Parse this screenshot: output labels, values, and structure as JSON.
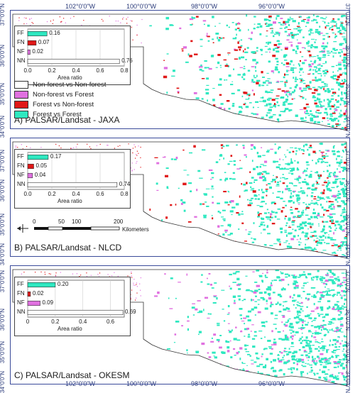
{
  "colors": {
    "FF": "#2ee8c0",
    "FN": "#e01818",
    "NF": "#e070e0",
    "NN": "#ffffff",
    "frame": "#3a4a9a"
  },
  "graticule": {
    "lon_labels": [
      "102°0'0\"W",
      "100°0'0\"W",
      "98°0'0\"W",
      "96°0'0\"W"
    ],
    "lat_labels": [
      "37°0'0\"N",
      "36°0'0\"N",
      "35°0'0\"N",
      "34°0'0\"N"
    ]
  },
  "legend": [
    {
      "label": "Non-forest vs Non-forest",
      "color": "#ffffff"
    },
    {
      "label": "Non-forest vs Forest",
      "color": "#e070e0"
    },
    {
      "label": "Forest vs Non-forest",
      "color": "#e01818"
    },
    {
      "label": "Forest vs Forest",
      "color": "#2ee8c0"
    }
  ],
  "scale_bar": {
    "ticks": [
      "0",
      "50",
      "100",
      "200"
    ],
    "unit": "Kilometers"
  },
  "panels": [
    {
      "title": "A) PALSAR/Landsat - JAXA",
      "chart_data": {
        "type": "bar",
        "categories": [
          "FF",
          "FN",
          "NF",
          "NN"
        ],
        "values": [
          0.16,
          0.07,
          0.02,
          0.76
        ],
        "value_labels": [
          "0.16",
          "0.07",
          "0.02",
          "0.76"
        ],
        "xlabel": "Area ratio",
        "xticks": [
          "0.0",
          "0.2",
          "0.4",
          "0.6",
          "0.8"
        ],
        "xlim": [
          0,
          0.8
        ]
      }
    },
    {
      "title": "B) PALSAR/Landsat - NLCD",
      "chart_data": {
        "type": "bar",
        "categories": [
          "FF",
          "FN",
          "NF",
          "NN"
        ],
        "values": [
          0.17,
          0.05,
          0.04,
          0.74
        ],
        "value_labels": [
          "0.17",
          "0.05",
          "0.04",
          "0.74"
        ],
        "xlabel": "Area ratio",
        "xticks": [
          "0.0",
          "0.2",
          "0.4",
          "0.6",
          "0.8"
        ],
        "xlim": [
          0,
          0.8
        ]
      }
    },
    {
      "title": "C) PALSAR/Landsat - OKESM",
      "chart_data": {
        "type": "bar",
        "categories": [
          "FF",
          "FN",
          "NF",
          "NN"
        ],
        "values": [
          0.2,
          0.02,
          0.09,
          0.69
        ],
        "value_labels": [
          "0.20",
          "0.02",
          "0.09",
          "0.69"
        ],
        "xlabel": "Area ratio",
        "xticks": [
          "0",
          "0.2",
          "0.4",
          "0.6"
        ],
        "xlim": [
          0,
          0.7
        ]
      }
    }
  ]
}
